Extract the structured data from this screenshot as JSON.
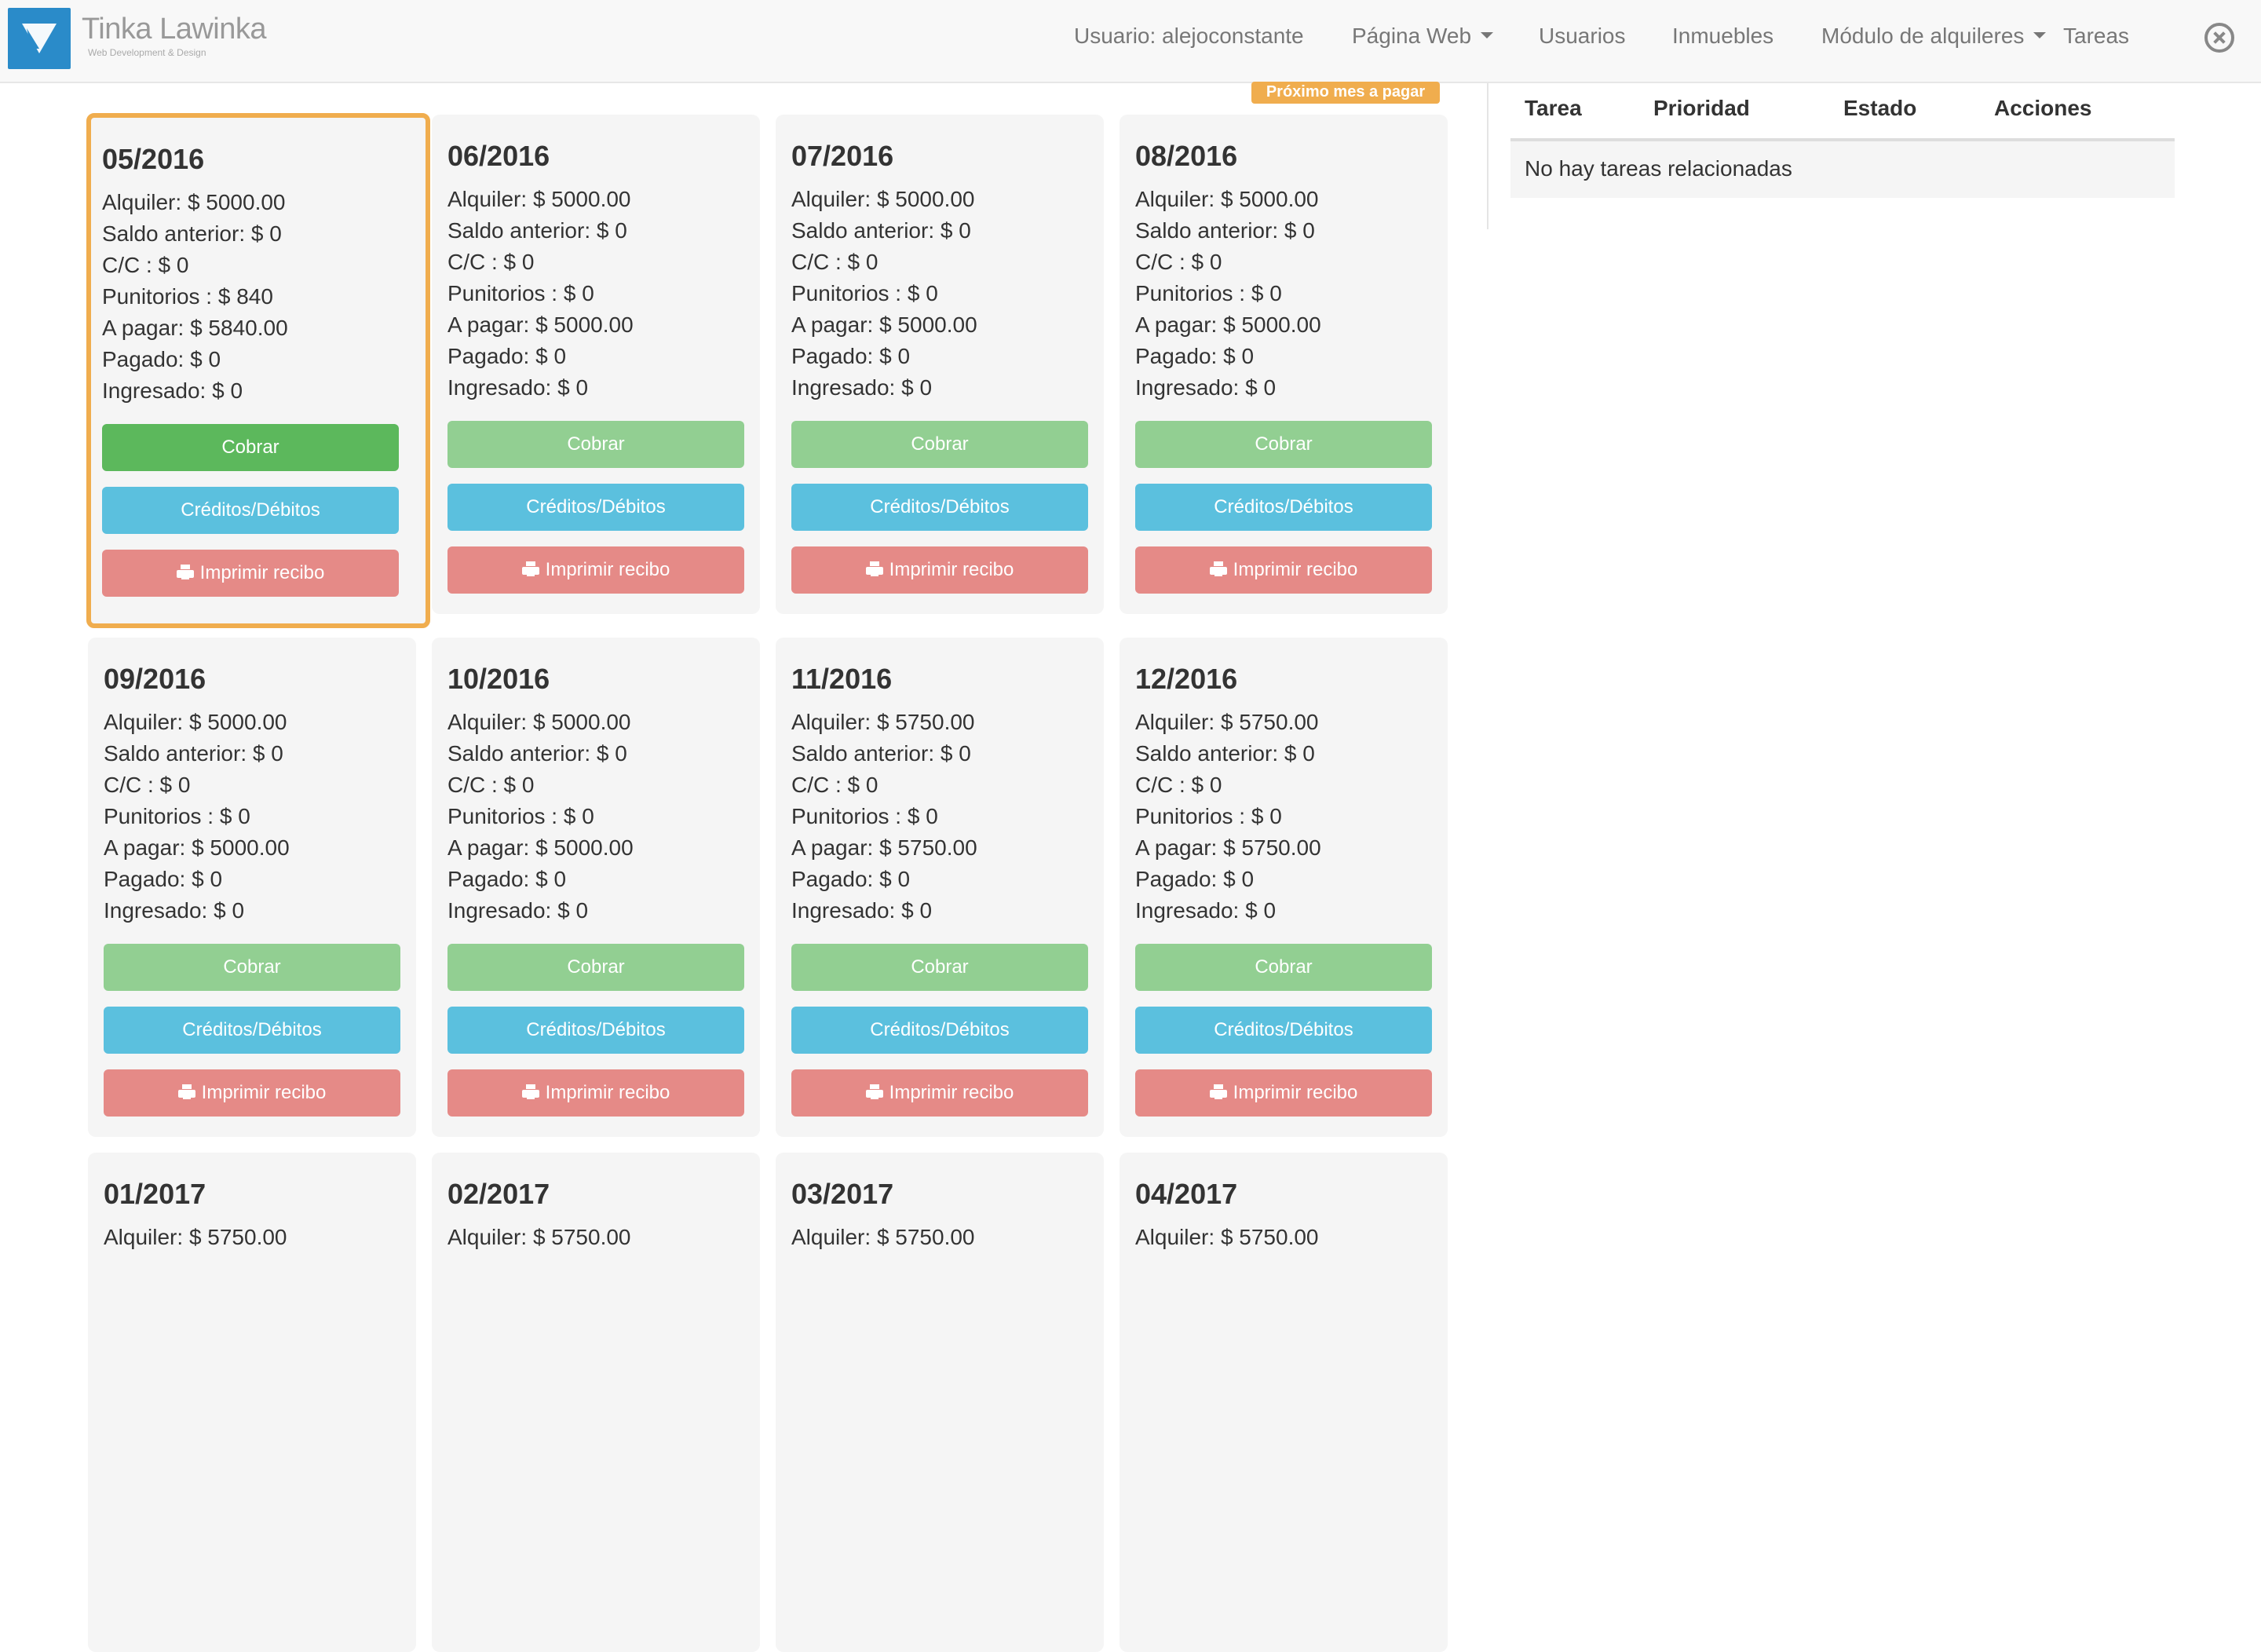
{
  "navbar": {
    "brand_name": "Tinka Lawinka",
    "brand_tagline": "Web Development & Design",
    "links": [
      {
        "label": "Usuario: alejoconstante",
        "dropdown": false
      },
      {
        "label": "Página Web",
        "dropdown": true
      },
      {
        "label": "Usuarios",
        "dropdown": false
      },
      {
        "label": "Inmuebles",
        "dropdown": false
      },
      {
        "label": "Módulo de alquileres",
        "dropdown": true
      },
      {
        "label": "Tareas",
        "dropdown": false
      }
    ],
    "close_icon": "close-circle-icon"
  },
  "next_badge": "Próximo mes a pagar",
  "buttons": {
    "cobrar": "Cobrar",
    "creditos": "Créditos/Débitos",
    "imprimir": "Imprimir recibo"
  },
  "cards": [
    {
      "period": "05/2016",
      "active": true,
      "lines": [
        "Alquiler: $ 5000.00",
        "Saldo anterior: $ 0",
        "C/C : $ 0",
        "Punitorios : $ 840",
        "A pagar: $ 5840.00",
        "Pagado: $ 0",
        "Ingresado: $ 0"
      ]
    },
    {
      "period": "06/2016",
      "active": false,
      "lines": [
        "Alquiler: $ 5000.00",
        "Saldo anterior: $ 0",
        "C/C : $ 0",
        "Punitorios : $ 0",
        "A pagar: $ 5000.00",
        "Pagado: $ 0",
        "Ingresado: $ 0"
      ]
    },
    {
      "period": "07/2016",
      "active": false,
      "lines": [
        "Alquiler: $ 5000.00",
        "Saldo anterior: $ 0",
        "C/C : $ 0",
        "Punitorios : $ 0",
        "A pagar: $ 5000.00",
        "Pagado: $ 0",
        "Ingresado: $ 0"
      ]
    },
    {
      "period": "08/2016",
      "active": false,
      "lines": [
        "Alquiler: $ 5000.00",
        "Saldo anterior: $ 0",
        "C/C : $ 0",
        "Punitorios : $ 0",
        "A pagar: $ 5000.00",
        "Pagado: $ 0",
        "Ingresado: $ 0"
      ]
    },
    {
      "period": "09/2016",
      "active": false,
      "lines": [
        "Alquiler: $ 5000.00",
        "Saldo anterior: $ 0",
        "C/C : $ 0",
        "Punitorios : $ 0",
        "A pagar: $ 5000.00",
        "Pagado: $ 0",
        "Ingresado: $ 0"
      ]
    },
    {
      "period": "10/2016",
      "active": false,
      "lines": [
        "Alquiler: $ 5000.00",
        "Saldo anterior: $ 0",
        "C/C : $ 0",
        "Punitorios : $ 0",
        "A pagar: $ 5000.00",
        "Pagado: $ 0",
        "Ingresado: $ 0"
      ]
    },
    {
      "period": "11/2016",
      "active": false,
      "lines": [
        "Alquiler: $ 5750.00",
        "Saldo anterior: $ 0",
        "C/C : $ 0",
        "Punitorios : $ 0",
        "A pagar: $ 5750.00",
        "Pagado: $ 0",
        "Ingresado: $ 0"
      ]
    },
    {
      "period": "12/2016",
      "active": false,
      "lines": [
        "Alquiler: $ 5750.00",
        "Saldo anterior: $ 0",
        "C/C : $ 0",
        "Punitorios : $ 0",
        "A pagar: $ 5750.00",
        "Pagado: $ 0",
        "Ingresado: $ 0"
      ]
    },
    {
      "period": "01/2017",
      "active": false,
      "lines": [
        "Alquiler: $ 5750.00"
      ]
    },
    {
      "period": "02/2017",
      "active": false,
      "lines": [
        "Alquiler: $ 5750.00"
      ]
    },
    {
      "period": "03/2017",
      "active": false,
      "lines": [
        "Alquiler: $ 5750.00"
      ]
    },
    {
      "period": "04/2017",
      "active": false,
      "lines": [
        "Alquiler: $ 5750.00"
      ]
    }
  ],
  "tasks": {
    "headers": [
      "Tarea",
      "Prioridad",
      "Estado",
      "Acciones"
    ],
    "empty_message": "No hay tareas relacionadas"
  },
  "colors": {
    "active_border": "#f0ad4e",
    "btn_success": "#5cb85c",
    "btn_success_disabled": "#92cf92",
    "btn_info": "#5bc0de",
    "btn_danger_light": "#e58a87"
  }
}
